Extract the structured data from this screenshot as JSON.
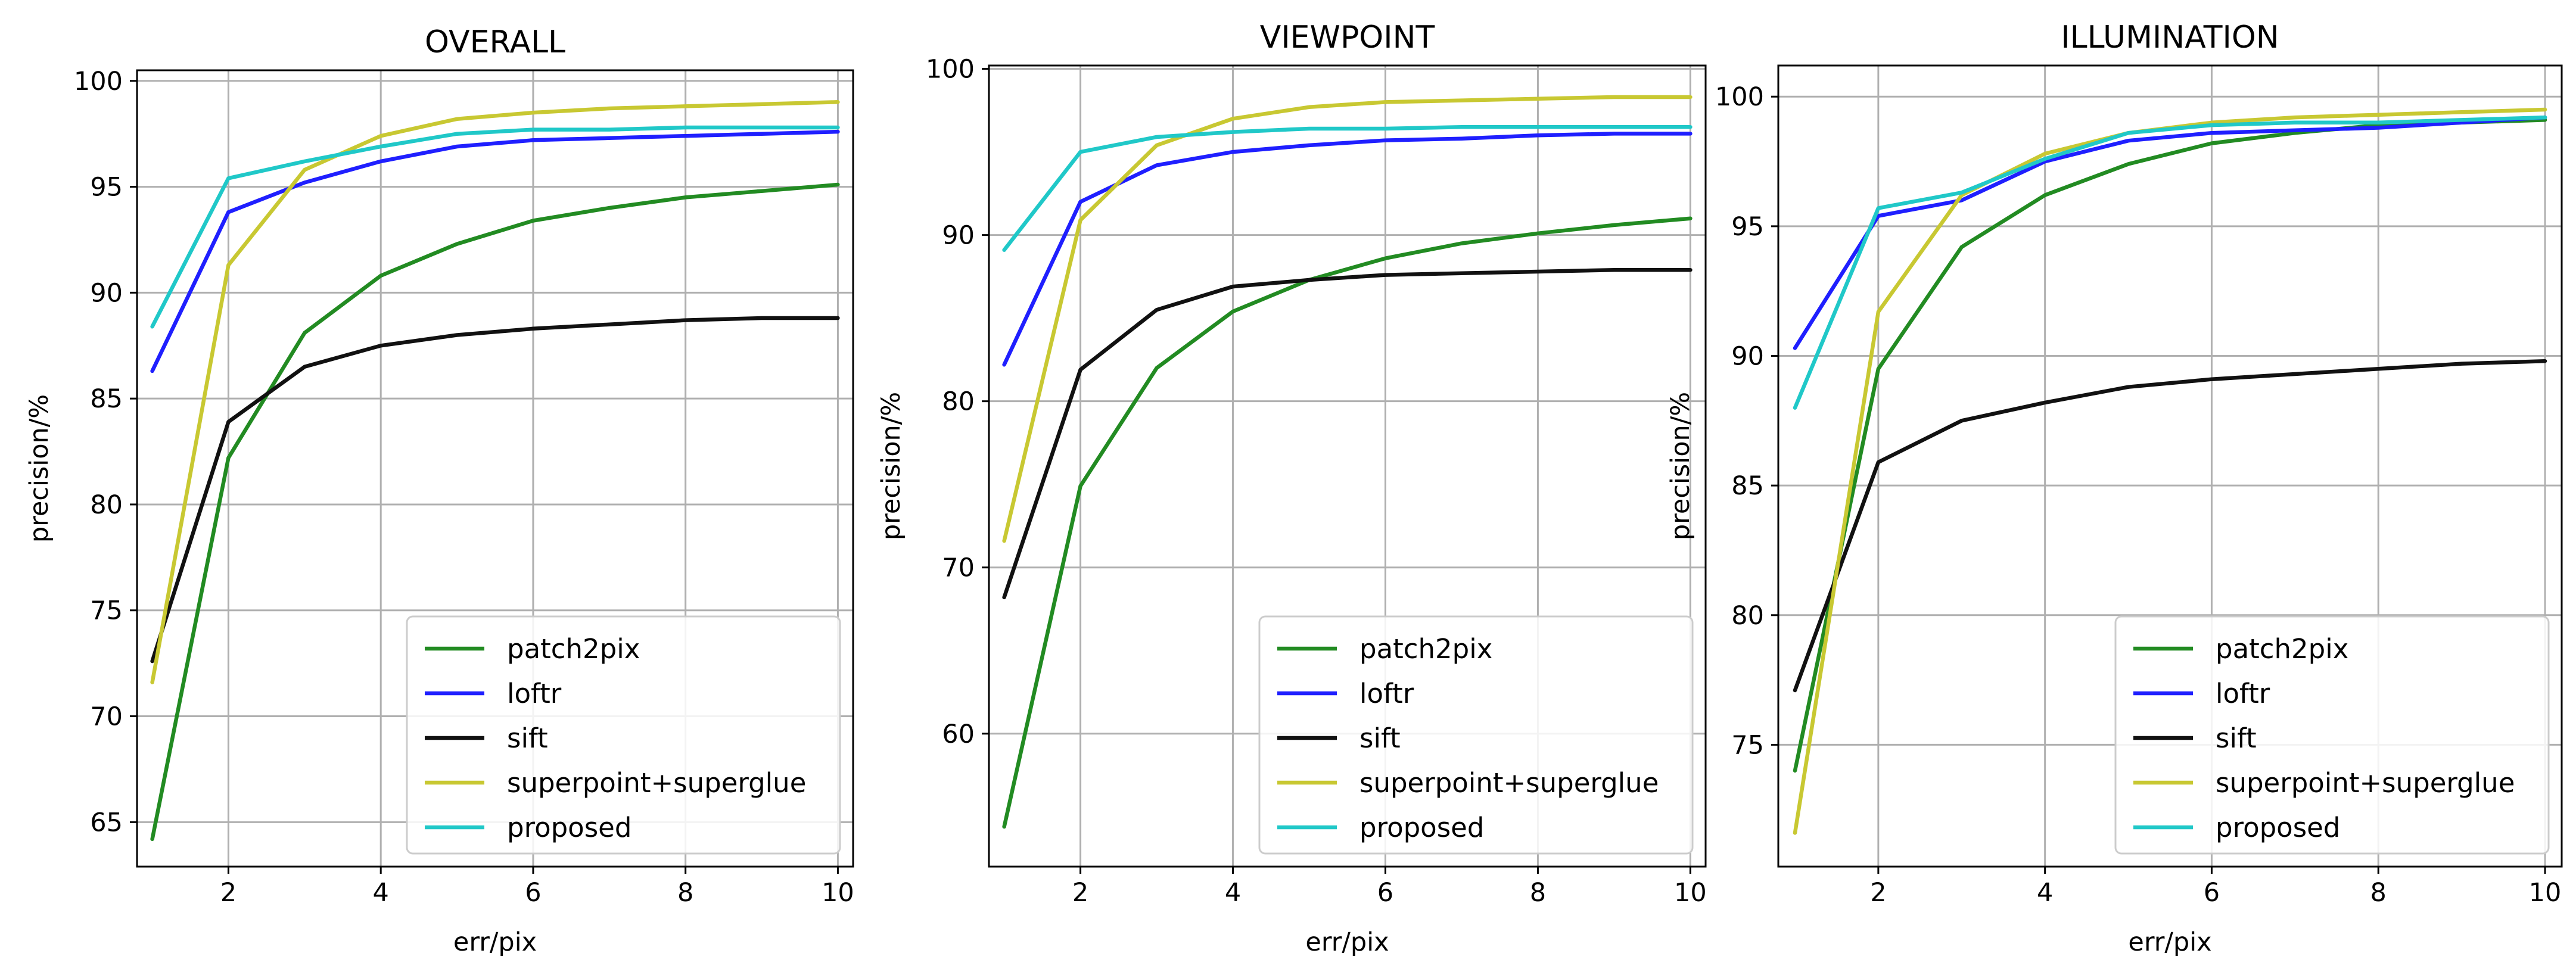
{
  "chart_data": [
    {
      "type": "line",
      "title": "OVERALL",
      "xlabel": "err/pix",
      "ylabel": "precision/%",
      "xlim": [
        0.8,
        10.2
      ],
      "ylim": [
        62.9,
        100.5
      ],
      "xticks": [
        2,
        4,
        6,
        8,
        10
      ],
      "yticks": [
        65,
        70,
        75,
        80,
        85,
        90,
        95,
        100
      ],
      "grid": true,
      "legend_position": "lower-right",
      "x": [
        1,
        2,
        3,
        4,
        5,
        6,
        7,
        8,
        9,
        10
      ],
      "series": [
        {
          "name": "patch2pix",
          "color": "#228b22",
          "values": [
            64.2,
            82.2,
            88.1,
            90.8,
            92.3,
            93.4,
            94.0,
            94.5,
            94.8,
            95.1
          ]
        },
        {
          "name": "loftr",
          "color": "#1f1fff",
          "values": [
            86.3,
            93.8,
            95.2,
            96.2,
            96.9,
            97.2,
            97.3,
            97.4,
            97.5,
            97.6
          ]
        },
        {
          "name": "sift",
          "color": "#111111",
          "values": [
            72.6,
            83.9,
            86.5,
            87.5,
            88.0,
            88.3,
            88.5,
            88.7,
            88.8,
            88.8
          ]
        },
        {
          "name": "superpoint+superglue",
          "color": "#c8c832",
          "values": [
            71.6,
            91.3,
            95.8,
            97.4,
            98.2,
            98.5,
            98.7,
            98.8,
            98.9,
            99.0
          ]
        },
        {
          "name": "proposed",
          "color": "#20c8c8",
          "values": [
            88.4,
            95.4,
            96.2,
            96.9,
            97.5,
            97.7,
            97.7,
            97.8,
            97.8,
            97.8
          ]
        }
      ]
    },
    {
      "type": "line",
      "title": "VIEWPOINT",
      "xlabel": "err/pix",
      "ylabel": "precision/%",
      "xlim": [
        0.8,
        10.2
      ],
      "ylim": [
        52,
        100.2
      ],
      "xticks": [
        2,
        4,
        6,
        8,
        10
      ],
      "yticks": [
        60,
        70,
        80,
        90,
        100
      ],
      "grid": true,
      "legend_position": "lower-right",
      "x": [
        1,
        2,
        3,
        4,
        5,
        6,
        7,
        8,
        9,
        10
      ],
      "series": [
        {
          "name": "patch2pix",
          "color": "#228b22",
          "values": [
            54.4,
            74.9,
            82.0,
            85.4,
            87.3,
            88.6,
            89.5,
            90.1,
            90.6,
            91.0
          ]
        },
        {
          "name": "loftr",
          "color": "#1f1fff",
          "values": [
            82.2,
            92.0,
            94.2,
            95.0,
            95.4,
            95.7,
            95.8,
            96.0,
            96.1,
            96.1
          ]
        },
        {
          "name": "sift",
          "color": "#111111",
          "values": [
            68.2,
            81.9,
            85.5,
            86.9,
            87.3,
            87.6,
            87.7,
            87.8,
            87.9,
            87.9
          ]
        },
        {
          "name": "superpoint+superglue",
          "color": "#c8c832",
          "values": [
            71.6,
            90.9,
            95.4,
            97.0,
            97.7,
            98.0,
            98.1,
            98.2,
            98.3,
            98.3
          ]
        },
        {
          "name": "proposed",
          "color": "#20c8c8",
          "values": [
            89.1,
            95.0,
            95.9,
            96.2,
            96.4,
            96.4,
            96.5,
            96.5,
            96.5,
            96.5
          ]
        }
      ]
    },
    {
      "type": "line",
      "title": "ILLUMINATION",
      "xlabel": "err/pix",
      "ylabel": "precision/%",
      "xlim": [
        0.8,
        10.2
      ],
      "ylim": [
        70.3,
        101.2
      ],
      "xticks": [
        2,
        4,
        6,
        8,
        10
      ],
      "yticks": [
        75,
        80,
        85,
        90,
        95,
        100
      ],
      "grid": true,
      "legend_position": "lower-right",
      "x": [
        1,
        2,
        3,
        4,
        5,
        6,
        7,
        8,
        9,
        10
      ],
      "series": [
        {
          "name": "patch2pix",
          "color": "#228b22",
          "values": [
            74.0,
            89.5,
            94.2,
            96.2,
            97.4,
            98.2,
            98.6,
            98.9,
            99.0,
            99.1
          ]
        },
        {
          "name": "loftr",
          "color": "#1f1fff",
          "values": [
            90.3,
            95.4,
            96.0,
            97.5,
            98.3,
            98.6,
            98.7,
            98.8,
            99.0,
            99.2
          ]
        },
        {
          "name": "sift",
          "color": "#111111",
          "values": [
            77.1,
            85.9,
            87.5,
            88.2,
            88.8,
            89.1,
            89.3,
            89.5,
            89.7,
            89.8
          ]
        },
        {
          "name": "superpoint+superglue",
          "color": "#c8c832",
          "values": [
            71.6,
            91.7,
            96.2,
            97.8,
            98.6,
            99.0,
            99.2,
            99.3,
            99.4,
            99.5
          ]
        },
        {
          "name": "proposed",
          "color": "#20c8c8",
          "values": [
            88.0,
            95.7,
            96.3,
            97.6,
            98.6,
            98.9,
            99.0,
            99.0,
            99.1,
            99.2
          ]
        }
      ]
    }
  ]
}
